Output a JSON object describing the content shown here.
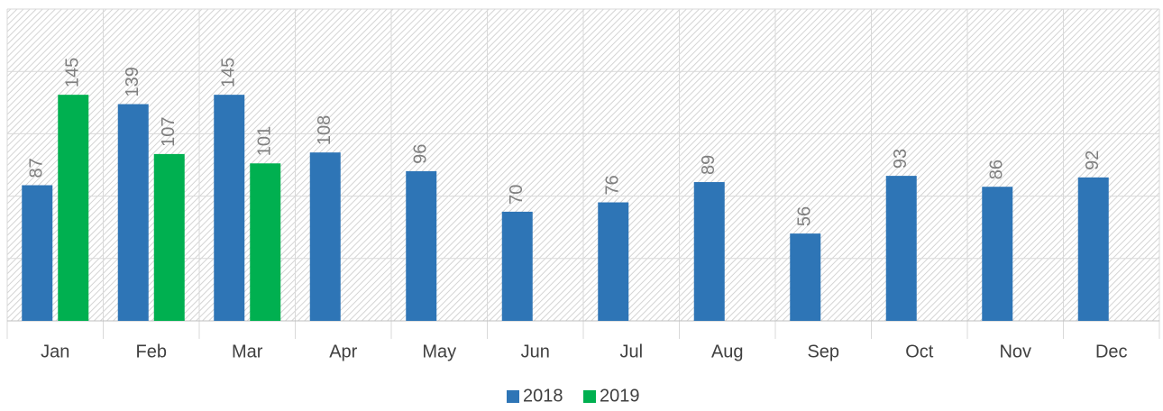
{
  "chart_data": {
    "type": "bar",
    "categories": [
      "Jan",
      "Feb",
      "Mar",
      "Apr",
      "May",
      "Jun",
      "Jul",
      "Aug",
      "Sep",
      "Oct",
      "Nov",
      "Dec"
    ],
    "series": [
      {
        "name": "2018",
        "color": "#2e75b6",
        "values": [
          87,
          139,
          145,
          108,
          96,
          70,
          76,
          89,
          56,
          93,
          86,
          92
        ]
      },
      {
        "name": "2019",
        "color": "#00b050",
        "values": [
          145,
          107,
          101,
          null,
          null,
          null,
          null,
          null,
          null,
          null,
          null,
          null
        ]
      }
    ],
    "ylim": [
      0,
      200
    ],
    "yticks": [
      0,
      40,
      80,
      120,
      160,
      200
    ],
    "grid": true,
    "legend": "bottom"
  }
}
